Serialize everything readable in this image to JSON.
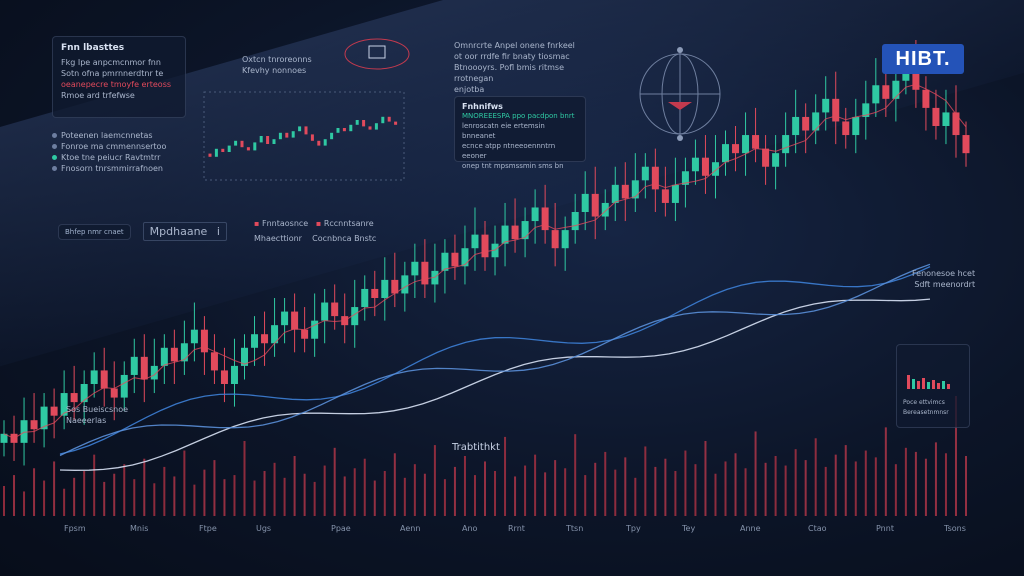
{
  "brand": {
    "logo_text": "HIBT."
  },
  "top_left_panel": {
    "title": "Fnn lbasttes",
    "lines": [
      "Fkg Ipe anpcmcnmor fnn",
      "Sotn ofna pmrnnerdtnr te",
      "oeanepecre tmoyfe erteoss",
      "Rmoe ard trfefwse"
    ],
    "highlight_index": 2
  },
  "left_list": {
    "items": [
      "Poteenen laemcnnetas",
      "Fonroe ma cmmennsertoo",
      "Ktoe tne peiucr Ravtmtrr",
      "Fnosorn tnrsmmirrafnoen"
    ]
  },
  "mini_chart_title": [
    "Oxtcn tnroreonns",
    "Kfevhy nonnoes"
  ],
  "top_center_text": [
    "Omnrcrte Anpel onene fnrkeel",
    "ot oor rrdfe fir bnaty tiosmac",
    "Btnoooyrs. Pofl bmis ritmse rrotnegan",
    "enjotba"
  ],
  "info_panel": {
    "title": "Fnhnifws",
    "lines": [
      "MNOREEESPA ppo pacdpon bnrt",
      "lenroscatn eie ertemsin bnneanet",
      "ecnce  atpp ntneeoennntrn eeoner",
      "onep tnt mpsmssmin sms bn"
    ],
    "highlight_index": 0
  },
  "toolbar": {
    "badge": "Bhfep nmr cnaet",
    "mode_label": "Mpdhaane",
    "mode_suffix": "i"
  },
  "legend_row": {
    "items": [
      "Fnntaosnce",
      "Rccnntsanre"
    ],
    "sub_items": [
      "Mhaecttionr",
      "Cocnbnca Bnstc"
    ]
  },
  "right_label": [
    "Fenonesoe hcet",
    "Sdft meenordrt"
  ],
  "left_label": [
    "Sos Bueiscsnoe",
    "Naeeerlas"
  ],
  "volume_label": "Trabtithkt",
  "inset_panel": {
    "lines": [
      "Poce ettvimcs",
      "Bereasetnmnsr"
    ]
  },
  "x_axis": [
    "Fpsm",
    "Mnis",
    "Ftpe",
    "Ugs",
    "Ppae",
    "Aenn",
    "Ano",
    "Rrnt",
    "Ttsn",
    "Tpy",
    "Tey",
    "Anne",
    "Ctao",
    "Pnnt",
    "Tsons"
  ],
  "colors": {
    "up": "#2fc9a3",
    "down": "#e14a5c",
    "line_white": "#d8e2f5",
    "line_blue": "#3d7fd6",
    "logo_bg": "#2453b8"
  },
  "chart_data": {
    "type": "candlestick",
    "title": "",
    "xlabel": "",
    "ylabel": "",
    "close": [
      38,
      36,
      41,
      39,
      44,
      42,
      47,
      45,
      49,
      52,
      48,
      46,
      51,
      55,
      50,
      53,
      57,
      54,
      58,
      61,
      56,
      52,
      49,
      53,
      57,
      60,
      58,
      62,
      65,
      61,
      59,
      63,
      67,
      64,
      62,
      66,
      70,
      68,
      72,
      69,
      73,
      76,
      71,
      74,
      78,
      75,
      79,
      82,
      77,
      80,
      84,
      81,
      85,
      88,
      83,
      79,
      83,
      87,
      91,
      86,
      89,
      93,
      90,
      94,
      97,
      92,
      89,
      93,
      96,
      99,
      95,
      98,
      102,
      100,
      104,
      101,
      97,
      100,
      104,
      108,
      105,
      109,
      112,
      107,
      104,
      108,
      111,
      115,
      112,
      116,
      119,
      114,
      110,
      106,
      109,
      104,
      100
    ],
    "volume": [
      22,
      30,
      18,
      35,
      26,
      40,
      20,
      28,
      33,
      45,
      25,
      31,
      38,
      27,
      42,
      24,
      36,
      29,
      48,
      23,
      34,
      41,
      27,
      30,
      55,
      26,
      33,
      39,
      28,
      44,
      31,
      25,
      37,
      50,
      29,
      35,
      42,
      26,
      33,
      46,
      28,
      38,
      31,
      52,
      27,
      36,
      44,
      30,
      40,
      33,
      58,
      29,
      37,
      45,
      32,
      41,
      35,
      60,
      30,
      39,
      47,
      34,
      43,
      28,
      51,
      36,
      42,
      33,
      48,
      38,
      55,
      31,
      40,
      46,
      35,
      62,
      39,
      44,
      37,
      49,
      41,
      57,
      36,
      45,
      52,
      40,
      48,
      43,
      65,
      38,
      50,
      47,
      42,
      54,
      46,
      88,
      44
    ]
  }
}
